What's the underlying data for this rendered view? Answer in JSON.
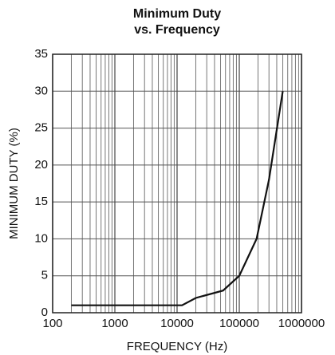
{
  "chart_data": {
    "type": "line",
    "title": "Minimum Duty",
    "subtitle": "vs. Frequency",
    "x_label": "FREQUENCY (Hz)",
    "y_label": "MINIMUM DUTY (%)",
    "x_scale": "log",
    "grid": true,
    "minor_grid": true,
    "xlim": [
      100,
      1000000
    ],
    "xticks": [
      100,
      1000,
      10000,
      100000,
      1000000
    ],
    "ylim": [
      0,
      35
    ],
    "yticks": [
      0,
      5,
      10,
      15,
      20,
      25,
      30,
      35
    ],
    "series": [
      {
        "color": "#111111",
        "x": [
          200,
          1000,
          10000,
          12000,
          20000,
          55000,
          100000,
          190000,
          300000,
          500000
        ],
        "values": [
          1,
          1,
          1,
          1,
          2,
          3,
          5,
          10,
          18,
          30
        ]
      }
    ]
  }
}
